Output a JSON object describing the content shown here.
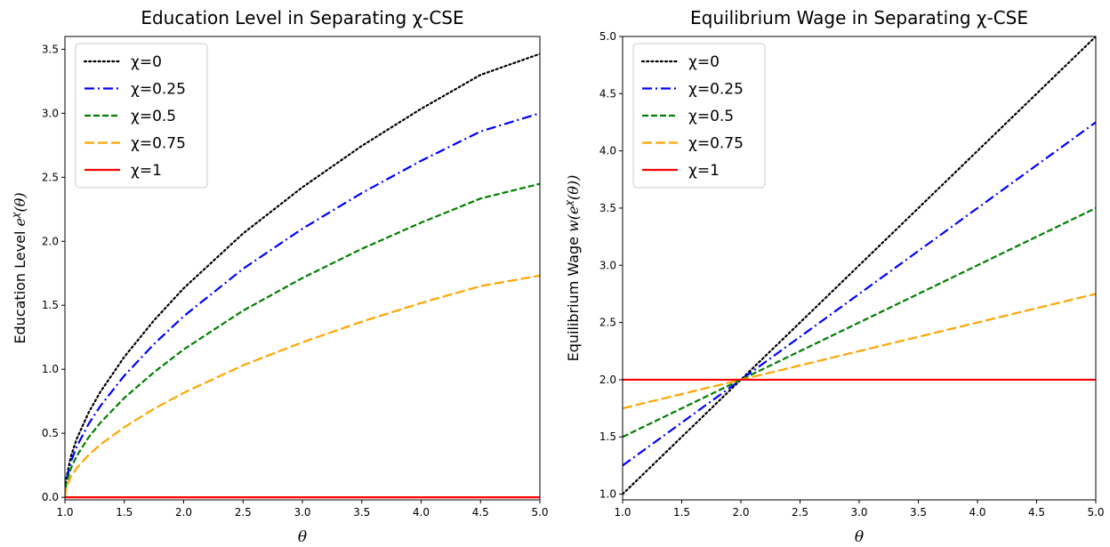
{
  "chart_data": [
    {
      "type": "line",
      "title": "Education Level in Separating χ-CSE",
      "xlabel": "θ",
      "ylabel": "Education Level e^χ(θ)",
      "ylabel_parts": {
        "text": "Education Level ",
        "symbol": "e",
        "superscript": "χ",
        "tail": "(θ)"
      },
      "xlim": [
        1.0,
        5.0
      ],
      "ylim": [
        -0.02,
        3.6
      ],
      "xticks": [
        "1.0",
        "1.5",
        "2.0",
        "2.5",
        "3.0",
        "3.5",
        "4.0",
        "4.5",
        "5.0"
      ],
      "yticks": [
        "0.0",
        "0.5",
        "1.0",
        "1.5",
        "2.0",
        "2.5",
        "3.0",
        "3.5"
      ],
      "grid": false,
      "legend_position": "top-left",
      "x": [
        1.0,
        1.01,
        1.05,
        1.1,
        1.2,
        1.3,
        1.5,
        1.75,
        2.0,
        2.5,
        3.0,
        3.5,
        4.0,
        4.5,
        5.0
      ],
      "series": [
        {
          "name": "χ=0",
          "color": "#000000",
          "dash": "dotted",
          "values": [
            0.0,
            0.141,
            0.32,
            0.458,
            0.663,
            0.826,
            1.097,
            1.382,
            1.633,
            2.061,
            2.422,
            2.745,
            3.035,
            3.3,
            3.464
          ]
        },
        {
          "name": "χ=0.25",
          "color": "#0000ff",
          "dash": "dashdot",
          "values": [
            0.0,
            0.122,
            0.277,
            0.397,
            0.574,
            0.715,
            0.95,
            1.197,
            1.414,
            1.785,
            2.098,
            2.377,
            2.629,
            2.858,
            3.0
          ]
        },
        {
          "name": "χ=0.5",
          "color": "#008000",
          "dash": "dashed",
          "values": [
            0.0,
            0.1,
            0.226,
            0.324,
            0.469,
            0.584,
            0.776,
            0.977,
            1.155,
            1.458,
            1.713,
            1.941,
            2.146,
            2.334,
            2.449
          ]
        },
        {
          "name": "χ=0.75",
          "color": "#ffa500",
          "dash": "longdash",
          "values": [
            0.0,
            0.071,
            0.16,
            0.229,
            0.332,
            0.413,
            0.548,
            0.691,
            0.816,
            1.031,
            1.211,
            1.372,
            1.518,
            1.65,
            1.732
          ]
        },
        {
          "name": "χ=1",
          "color": "#ff0000",
          "dash": "solid",
          "values": [
            0.0,
            0.0,
            0.0,
            0.0,
            0.0,
            0.0,
            0.0,
            0.0,
            0.0,
            0.0,
            0.0,
            0.0,
            0.0,
            0.0,
            0.0
          ]
        }
      ]
    },
    {
      "type": "line",
      "title": "Equilibrium Wage in Separating χ-CSE",
      "xlabel": "θ",
      "ylabel": "Equilibrium Wage w(e^χ(θ))",
      "ylabel_parts": {
        "text": "Equilibrium Wage ",
        "symbol": "w(e",
        "superscript": "χ",
        "tail": "(θ))"
      },
      "xlim": [
        1.0,
        5.0
      ],
      "ylim": [
        0.95,
        5.0
      ],
      "xticks": [
        "1.0",
        "1.5",
        "2.0",
        "2.5",
        "3.0",
        "3.5",
        "4.0",
        "4.5",
        "5.0"
      ],
      "yticks": [
        "1.0",
        "1.5",
        "2.0",
        "2.5",
        "3.0",
        "3.5",
        "4.0",
        "4.5",
        "5.0"
      ],
      "grid": false,
      "legend_position": "top-left",
      "x": [
        1.0,
        5.0
      ],
      "series": [
        {
          "name": "χ=0",
          "color": "#000000",
          "dash": "dotted",
          "values": [
            1.0,
            5.0
          ]
        },
        {
          "name": "χ=0.25",
          "color": "#0000ff",
          "dash": "dashdot",
          "values": [
            1.25,
            4.25
          ]
        },
        {
          "name": "χ=0.5",
          "color": "#008000",
          "dash": "dashed",
          "values": [
            1.5,
            3.5
          ]
        },
        {
          "name": "χ=0.75",
          "color": "#ffa500",
          "dash": "longdash",
          "values": [
            1.75,
            2.75
          ]
        },
        {
          "name": "χ=1",
          "color": "#ff0000",
          "dash": "solid",
          "values": [
            2.0,
            2.0
          ]
        }
      ]
    }
  ]
}
